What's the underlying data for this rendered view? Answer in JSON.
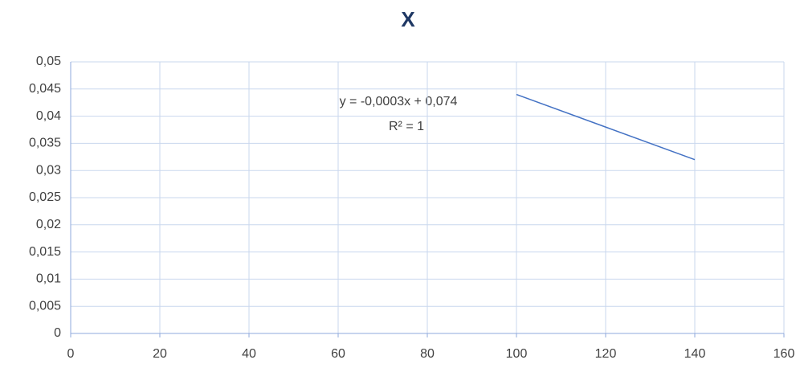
{
  "chart_data": {
    "type": "scatter",
    "title": "X",
    "series": [
      {
        "name": "X",
        "color": "#4472c4",
        "x": [
          100,
          120,
          140
        ],
        "values": [
          0.044,
          0.038,
          0.032
        ]
      }
    ],
    "annotations": [
      "y = -0,0003x + 0,074",
      "R² = 1"
    ],
    "xlim": [
      0,
      160
    ],
    "xticks": [
      0,
      20,
      40,
      60,
      80,
      100,
      120,
      140,
      160
    ],
    "ylim": [
      0,
      0.05
    ],
    "yticks": [
      0,
      {
        "value": 0.005,
        "label": "0,005"
      },
      {
        "value": 0.01,
        "label": "0,01"
      },
      {
        "value": 0.015,
        "label": "0,015"
      },
      {
        "value": 0.02,
        "label": "0,02"
      },
      {
        "value": 0.025,
        "label": "0,025"
      },
      {
        "value": 0.03,
        "label": "0,03"
      },
      {
        "value": 0.035,
        "label": "0,035"
      },
      {
        "value": 0.04,
        "label": "0,04"
      },
      {
        "value": 0.045,
        "label": "0,045"
      },
      {
        "value": 0.05,
        "label": "0,05"
      }
    ],
    "grid": true
  }
}
